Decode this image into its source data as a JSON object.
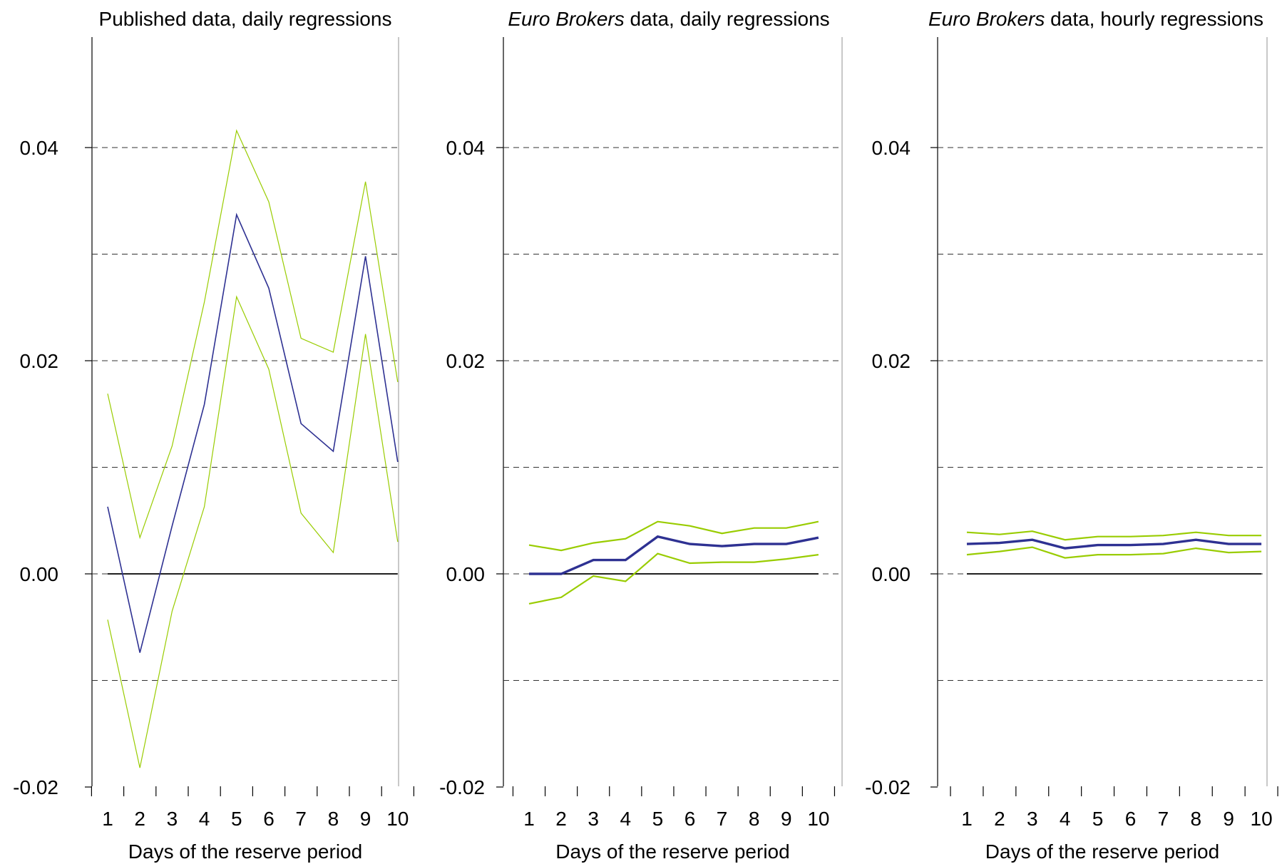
{
  "chart_data": [
    {
      "type": "line",
      "title_italic": "",
      "title_rest": "Published data, daily regressions",
      "xlabel": "Days of the reserve period",
      "ylabel": "",
      "x": [
        1,
        2,
        3,
        4,
        5,
        6,
        7,
        8,
        9,
        10
      ],
      "x_ticks": [
        "1",
        "2",
        "3",
        "4",
        "5",
        "6",
        "7",
        "8",
        "9",
        "10"
      ],
      "ylim": [
        -0.02,
        0.052
      ],
      "y_tick_values": [
        -0.02,
        0.0,
        0.02,
        0.04
      ],
      "y_ticks": [
        "-0.02",
        "0.00",
        "0.02",
        "0.04"
      ],
      "gridlines": [
        -0.01,
        0.0,
        0.01,
        0.02,
        0.03,
        0.04
      ],
      "zero_line": true,
      "series": [
        {
          "role": "estimate",
          "color": "#2e3192",
          "values": [
            0.0063,
            -0.0074,
            0.0045,
            0.0159,
            0.0337,
            0.0268,
            0.0141,
            0.0115,
            0.0298,
            0.0105
          ]
        },
        {
          "role": "upper",
          "color": "#99cc00",
          "values": [
            0.0169,
            0.0034,
            0.012,
            0.0255,
            0.0416,
            0.0349,
            0.0221,
            0.0208,
            0.0368,
            0.018
          ]
        },
        {
          "role": "lower",
          "color": "#99cc00",
          "values": [
            -0.0043,
            -0.0182,
            -0.0035,
            0.0063,
            0.026,
            0.0192,
            0.0057,
            0.002,
            0.0225,
            0.003
          ]
        }
      ]
    },
    {
      "type": "line",
      "title_italic": "Euro Brokers",
      "title_rest": " data, daily regressions",
      "xlabel": "Days of the reserve period",
      "ylabel": "",
      "x": [
        1,
        2,
        3,
        4,
        5,
        6,
        7,
        8,
        9,
        10
      ],
      "x_ticks": [
        "1",
        "2",
        "3",
        "4",
        "5",
        "6",
        "7",
        "8",
        "9",
        "10"
      ],
      "ylim": [
        -0.02,
        0.052
      ],
      "y_tick_values": [
        -0.02,
        0.0,
        0.02,
        0.04
      ],
      "y_ticks": [
        "-0.02",
        "0.00",
        "0.02",
        "0.04"
      ],
      "gridlines": [
        -0.01,
        0.0,
        0.01,
        0.02,
        0.03,
        0.04
      ],
      "zero_line": true,
      "series": [
        {
          "role": "estimate",
          "color": "#2e3192",
          "values": [
            0.0,
            0.0,
            0.0013,
            0.0013,
            0.0035,
            0.0028,
            0.0026,
            0.0028,
            0.0028,
            0.0034
          ]
        },
        {
          "role": "upper",
          "color": "#99cc00",
          "values": [
            0.0027,
            0.0022,
            0.0029,
            0.0033,
            0.0049,
            0.0045,
            0.0038,
            0.0043,
            0.0043,
            0.0049
          ]
        },
        {
          "role": "lower",
          "color": "#99cc00",
          "values": [
            -0.0028,
            -0.0022,
            -0.0002,
            -0.0007,
            0.0019,
            0.001,
            0.0011,
            0.0011,
            0.0014,
            0.0018
          ]
        }
      ]
    },
    {
      "type": "line",
      "title_italic": "Euro Brokers",
      "title_rest": " data, hourly regressions",
      "xlabel": "Days of the reserve period",
      "ylabel": "",
      "x": [
        1,
        2,
        3,
        4,
        5,
        6,
        7,
        8,
        9,
        10
      ],
      "x_ticks": [
        "1",
        "2",
        "3",
        "4",
        "5",
        "6",
        "7",
        "8",
        "9",
        "10"
      ],
      "ylim": [
        -0.02,
        0.052
      ],
      "y_tick_values": [
        -0.02,
        0.0,
        0.02,
        0.04
      ],
      "y_ticks": [
        "-0.02",
        "0.00",
        "0.02",
        "0.04"
      ],
      "gridlines": [
        -0.01,
        0.0,
        0.01,
        0.02,
        0.03,
        0.04
      ],
      "zero_line": true,
      "series": [
        {
          "role": "estimate",
          "color": "#2e3192",
          "values": [
            0.0028,
            0.0029,
            0.0032,
            0.0024,
            0.0027,
            0.0027,
            0.0028,
            0.0032,
            0.0028,
            0.0028
          ]
        },
        {
          "role": "upper",
          "color": "#99cc00",
          "values": [
            0.0039,
            0.0037,
            0.004,
            0.0032,
            0.0035,
            0.0035,
            0.0036,
            0.0039,
            0.0036,
            0.0036
          ]
        },
        {
          "role": "lower",
          "color": "#99cc00",
          "values": [
            0.0018,
            0.0021,
            0.0025,
            0.0015,
            0.0018,
            0.0018,
            0.0019,
            0.0024,
            0.002,
            0.0021
          ]
        }
      ]
    }
  ]
}
